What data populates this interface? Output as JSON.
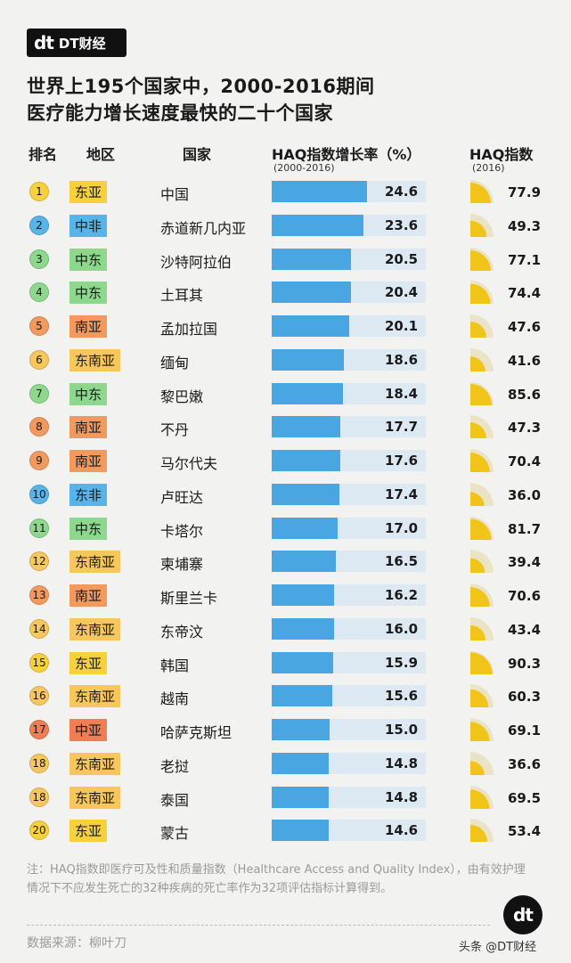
{
  "brand": {
    "mark": "dt",
    "name": "DT财经"
  },
  "title": {
    "line1": "世界上195个国家中，2000-2016期间",
    "line2": "医疗能力增长速度最快的二十个国家"
  },
  "headers": {
    "rank": "排名",
    "region": "地区",
    "country": "国家",
    "growth": "HAQ指数增长率（%）",
    "growth_sub": "(2000-2016)",
    "haq": "HAQ指数",
    "haq_sub": "(2016)"
  },
  "region_colors": {
    "东亚": "#f6d13b",
    "中非": "#58b3e8",
    "中东": "#8ed88e",
    "南亚": "#f29a5e",
    "东南亚": "#f7c65c",
    "东非": "#58b3e8",
    "中亚": "#f07e55"
  },
  "chart_data": {
    "type": "bar",
    "title": "世界上195个国家中，2000-2016期间医疗能力增长速度最快的二十个国家",
    "rows": [
      {
        "rank": "1",
        "region": "东亚",
        "country": "中国",
        "growth": 24.6,
        "haq": 77.9
      },
      {
        "rank": "2",
        "region": "中非",
        "country": "赤道新几内亚",
        "growth": 23.6,
        "haq": 49.3
      },
      {
        "rank": "3",
        "region": "中东",
        "country": "沙特阿拉伯",
        "growth": 20.5,
        "haq": 77.1
      },
      {
        "rank": "4",
        "region": "中东",
        "country": "土耳其",
        "growth": 20.4,
        "haq": 74.4
      },
      {
        "rank": "5",
        "region": "南亚",
        "country": "孟加拉国",
        "growth": 20.1,
        "haq": 47.6
      },
      {
        "rank": "6",
        "region": "东南亚",
        "country": "缅甸",
        "growth": 18.6,
        "haq": 41.6
      },
      {
        "rank": "7",
        "region": "中东",
        "country": "黎巴嫩",
        "growth": 18.4,
        "haq": 85.6
      },
      {
        "rank": "8",
        "region": "南亚",
        "country": "不丹",
        "growth": 17.7,
        "haq": 47.3
      },
      {
        "rank": "9",
        "region": "南亚",
        "country": "马尔代夫",
        "growth": 17.6,
        "haq": 70.4
      },
      {
        "rank": "10",
        "region": "东非",
        "country": "卢旺达",
        "growth": 17.4,
        "haq": 36.0
      },
      {
        "rank": "11",
        "region": "中东",
        "country": "卡塔尔",
        "growth": 17.0,
        "haq": 81.7
      },
      {
        "rank": "12",
        "region": "东南亚",
        "country": "柬埔寨",
        "growth": 16.5,
        "haq": 39.4
      },
      {
        "rank": "13",
        "region": "南亚",
        "country": "斯里兰卡",
        "growth": 16.2,
        "haq": 70.6
      },
      {
        "rank": "14",
        "region": "东南亚",
        "country": "东帝汶",
        "growth": 16.0,
        "haq": 43.4
      },
      {
        "rank": "15",
        "region": "东亚",
        "country": "韩国",
        "growth": 15.9,
        "haq": 90.3
      },
      {
        "rank": "16",
        "region": "东南亚",
        "country": "越南",
        "growth": 15.6,
        "haq": 60.3
      },
      {
        "rank": "17",
        "region": "中亚",
        "country": "哈萨克斯坦",
        "growth": 15.0,
        "haq": 69.1
      },
      {
        "rank": "18",
        "region": "东南亚",
        "country": "老挝",
        "growth": 14.8,
        "haq": 36.6
      },
      {
        "rank": "18",
        "region": "东南亚",
        "country": "泰国",
        "growth": 14.8,
        "haq": 69.5
      },
      {
        "rank": "20",
        "region": "东亚",
        "country": "蒙古",
        "growth": 14.6,
        "haq": 53.4
      }
    ],
    "growth_max": 24.6,
    "haq_max": 100
  },
  "note": "注：HAQ指数即医疗可及性和质量指数（Healthcare Access and Quality Index），由有效护理情况下不应发生死亡的32种疾病的死亡率作为32项评估指标计算得到。",
  "source": "数据来源：柳叶刀",
  "footer": "头条 @DT财经"
}
